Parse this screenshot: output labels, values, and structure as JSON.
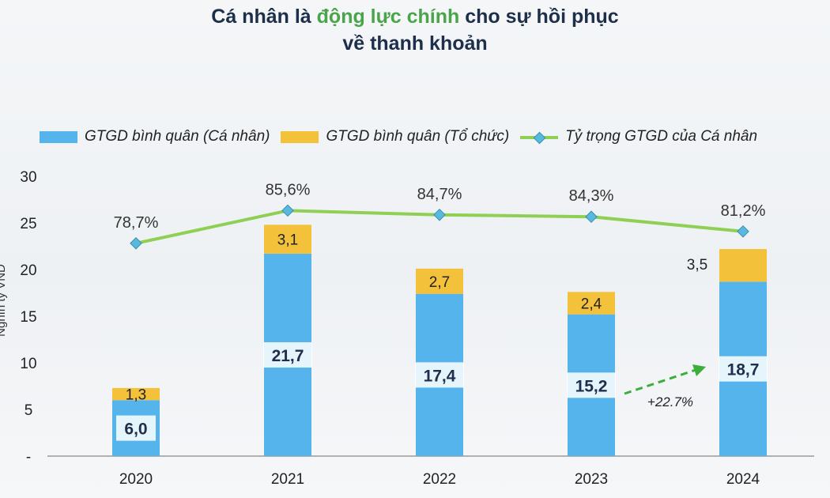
{
  "title": {
    "part1": "Cá nhân là ",
    "highlight": "động lực chính",
    "part2": " cho sự hồi phục",
    "line2": "về thanh khoản"
  },
  "colors": {
    "individual": "#56b4ec",
    "institution": "#f4c23a",
    "share_line": "#8fcf54",
    "share_marker": "#58b9de",
    "growth_arrow": "#3cae3c"
  },
  "growth_label": "+22.7%",
  "chart_data": {
    "type": "bar",
    "stacked": true,
    "categories": [
      "2020",
      "2021",
      "2022",
      "2023",
      "2024"
    ],
    "series": [
      {
        "name": "GTGD bình quân (Cá nhân)",
        "values": [
          6.0,
          21.7,
          17.4,
          15.2,
          18.7
        ],
        "labels": [
          "6,0",
          "21,7",
          "17,4",
          "15,2",
          "18,7"
        ]
      },
      {
        "name": "GTGD bình quân (Tổ chức)",
        "values": [
          1.3,
          3.1,
          2.7,
          2.4,
          3.5
        ],
        "labels": [
          "1,3",
          "3,1",
          "2,7",
          "2,4",
          "3,5"
        ]
      }
    ],
    "line_series": {
      "name": "Tỷ trọng GTGD của Cá nhân",
      "values": [
        78.7,
        85.6,
        84.7,
        84.3,
        81.2
      ],
      "labels": [
        "78,7%",
        "85,6%",
        "84,7%",
        "84,3%",
        "81,2%"
      ]
    },
    "ylabel": "Nghìn tỷ VND",
    "ylim": [
      0,
      30
    ],
    "yticks": [
      0,
      5,
      10,
      15,
      20,
      25,
      30
    ],
    "ytick_labels": [
      "-",
      "5",
      "10",
      "15",
      "20",
      "25",
      "30"
    ],
    "legend_position": "top"
  }
}
